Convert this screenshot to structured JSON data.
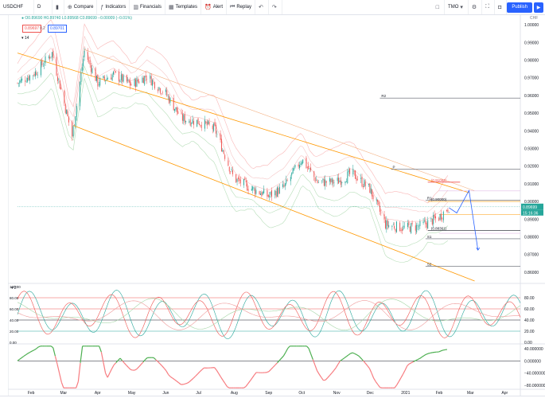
{
  "toolbar": {
    "symbol": "USDCHF",
    "interval": "D",
    "compare": "Compare",
    "indicators": "Indicators",
    "financials": "Financials",
    "templates": "Templates",
    "alert": "Alert",
    "replay": "Replay",
    "tmo": "TMO",
    "publish": "Publish"
  },
  "legend": {
    "ohlc": "O0.89690 H0.89740 L0.89568 C0.89699 −0.00009 (−0.01%)",
    "sell_price": "0.89697",
    "spread": "0.2",
    "buy_price": "0.89701",
    "indicator_count": "14"
  },
  "price_axis": {
    "currency": "CHF",
    "ticks": [
      "1.00000",
      "0.99000",
      "0.98000",
      "0.97000",
      "0.96000",
      "0.95000",
      "0.94000",
      "0.93000",
      "0.92000",
      "0.91000",
      "0.90000",
      "0.89000",
      "0.88000",
      "0.87000",
      "0.86000"
    ],
    "last_price": "0.89699",
    "countdown": "15:16:36"
  },
  "osc_axis": {
    "ticks": [
      "80.00",
      "60.00",
      "40.00",
      "20.00",
      "0.00"
    ],
    "left_ticks": [
      "100.00",
      "80.00",
      "60.00",
      "40.00",
      "20.00",
      "0.00"
    ],
    "count": "2"
  },
  "macd_axis": {
    "ticks": [
      "40.000000",
      "0.000000",
      "−40.000000",
      "−80.000000"
    ]
  },
  "time_axis": {
    "labels": [
      "Feb",
      "Mar",
      "Apr",
      "May",
      "Jun",
      "Jul",
      "Aug",
      "Sep",
      "Oct",
      "Nov",
      "Dec",
      "2021",
      "Feb",
      "Mar",
      "Apr"
    ]
  },
  "pivots": {
    "r1": "R1",
    "p": "P",
    "r2": "R2",
    "s1": "S1",
    "s2": "S2",
    "fib_top": "(0.91094)",
    "fib_mid": "(0.90000)",
    "fib_low": "(0.88361)"
  },
  "colors": {
    "up": "#26a69a",
    "down": "#ef5350",
    "accent": "#2962ff",
    "channel": "#ff9800"
  },
  "chart_data": {
    "type": "candlestick",
    "symbol": "USDCHF",
    "interval": "D",
    "y_range": [
      0.855,
      1.005
    ],
    "x_range": [
      "2020-01-20",
      "2021-04-15"
    ],
    "ohlc_last": {
      "open": 0.8969,
      "high": 0.8974,
      "low": 0.89568,
      "close": 0.89699
    },
    "close_series": [
      {
        "date": "2020-01-20",
        "close": 0.967
      },
      {
        "date": "2020-02-05",
        "close": 0.973
      },
      {
        "date": "2020-02-20",
        "close": 0.984
      },
      {
        "date": "2020-03-01",
        "close": 0.958
      },
      {
        "date": "2020-03-09",
        "close": 0.937
      },
      {
        "date": "2020-03-20",
        "close": 0.985
      },
      {
        "date": "2020-04-01",
        "close": 0.967
      },
      {
        "date": "2020-04-15",
        "close": 0.972
      },
      {
        "date": "2020-05-01",
        "close": 0.966
      },
      {
        "date": "2020-05-15",
        "close": 0.971
      },
      {
        "date": "2020-06-01",
        "close": 0.961
      },
      {
        "date": "2020-06-15",
        "close": 0.947
      },
      {
        "date": "2020-07-01",
        "close": 0.945
      },
      {
        "date": "2020-07-15",
        "close": 0.941
      },
      {
        "date": "2020-08-01",
        "close": 0.913
      },
      {
        "date": "2020-08-15",
        "close": 0.908
      },
      {
        "date": "2020-09-01",
        "close": 0.903
      },
      {
        "date": "2020-09-15",
        "close": 0.908
      },
      {
        "date": "2020-10-01",
        "close": 0.924
      },
      {
        "date": "2020-10-15",
        "close": 0.911
      },
      {
        "date": "2020-11-01",
        "close": 0.911
      },
      {
        "date": "2020-11-15",
        "close": 0.916
      },
      {
        "date": "2020-12-01",
        "close": 0.907
      },
      {
        "date": "2020-12-15",
        "close": 0.887
      },
      {
        "date": "2021-01-01",
        "close": 0.885
      },
      {
        "date": "2021-01-15",
        "close": 0.886
      },
      {
        "date": "2021-02-01",
        "close": 0.891
      },
      {
        "date": "2021-02-10",
        "close": 0.897
      }
    ],
    "projection": [
      {
        "date": "2021-02-10",
        "price": 0.8965
      },
      {
        "date": "2021-02-17",
        "price": 0.8935
      },
      {
        "date": "2021-02-28",
        "price": 0.9062
      },
      {
        "date": "2021-03-08",
        "price": 0.8725
      }
    ],
    "pivot_levels": {
      "R2": 0.9585,
      "P": 0.9182,
      "R1": 0.9008,
      "S1": 0.8789,
      "S2": 0.8633
    },
    "fib_levels": [
      0.91094,
      0.9,
      0.88361
    ],
    "oscillator": {
      "range": [
        0,
        100
      ],
      "levels": [
        80,
        60,
        40,
        20,
        0
      ]
    },
    "macd": {
      "range": [
        -90,
        50
      ],
      "levels": [
        40,
        0,
        -40,
        -80
      ]
    }
  }
}
